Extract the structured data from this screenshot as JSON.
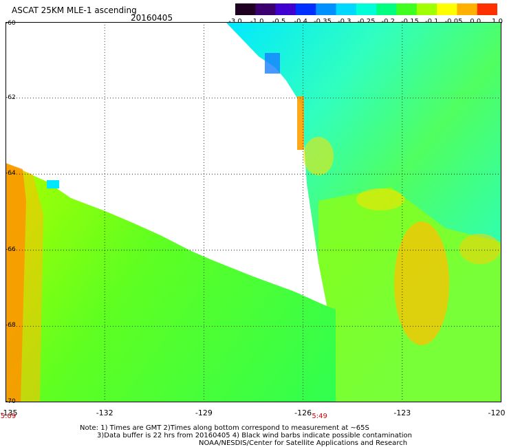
{
  "header": {
    "title": "ASCAT 25KM MLE-1 ascending",
    "date": "20160405"
  },
  "colorbar": {
    "labels": [
      "-3.0",
      "-1.0",
      "-0.5",
      "-0.4",
      "-0.35",
      "-0.3",
      "-0.25",
      "-0.2",
      "-0.15",
      "-0.1",
      "-0.05",
      "0.0",
      "1.0"
    ],
    "colors": [
      "#200020",
      "#3a0070",
      "#4000d0",
      "#0030ff",
      "#0090ff",
      "#00d8ff",
      "#00ffd8",
      "#00ff80",
      "#40ff20",
      "#a0ff00",
      "#ffff00",
      "#ffb000",
      "#ff3000"
    ]
  },
  "axes": {
    "lat_labels": [
      "-60",
      "-62",
      "-64",
      "-66",
      "-68",
      "-70"
    ],
    "lon_labels": [
      "-135",
      "-132",
      "-129",
      "-126",
      "-123",
      "-120"
    ],
    "lat_range": [
      -70,
      -60
    ],
    "lon_range": [
      -135,
      -120
    ]
  },
  "times": [
    {
      "label": "5:09",
      "lon": -135
    },
    {
      "label": "5:49",
      "lon": -125.5
    }
  ],
  "notes": {
    "line1": "Note: 1) Times are GMT 2)Times along bottom correspond to measurement at ~65S",
    "line2": "3)Data buffer is 22 hrs from 20160405 4) Black wind barbs indicate possible contamination",
    "line3": "NOAA/NESDIS/Center for Satellite Applications and Research"
  }
}
